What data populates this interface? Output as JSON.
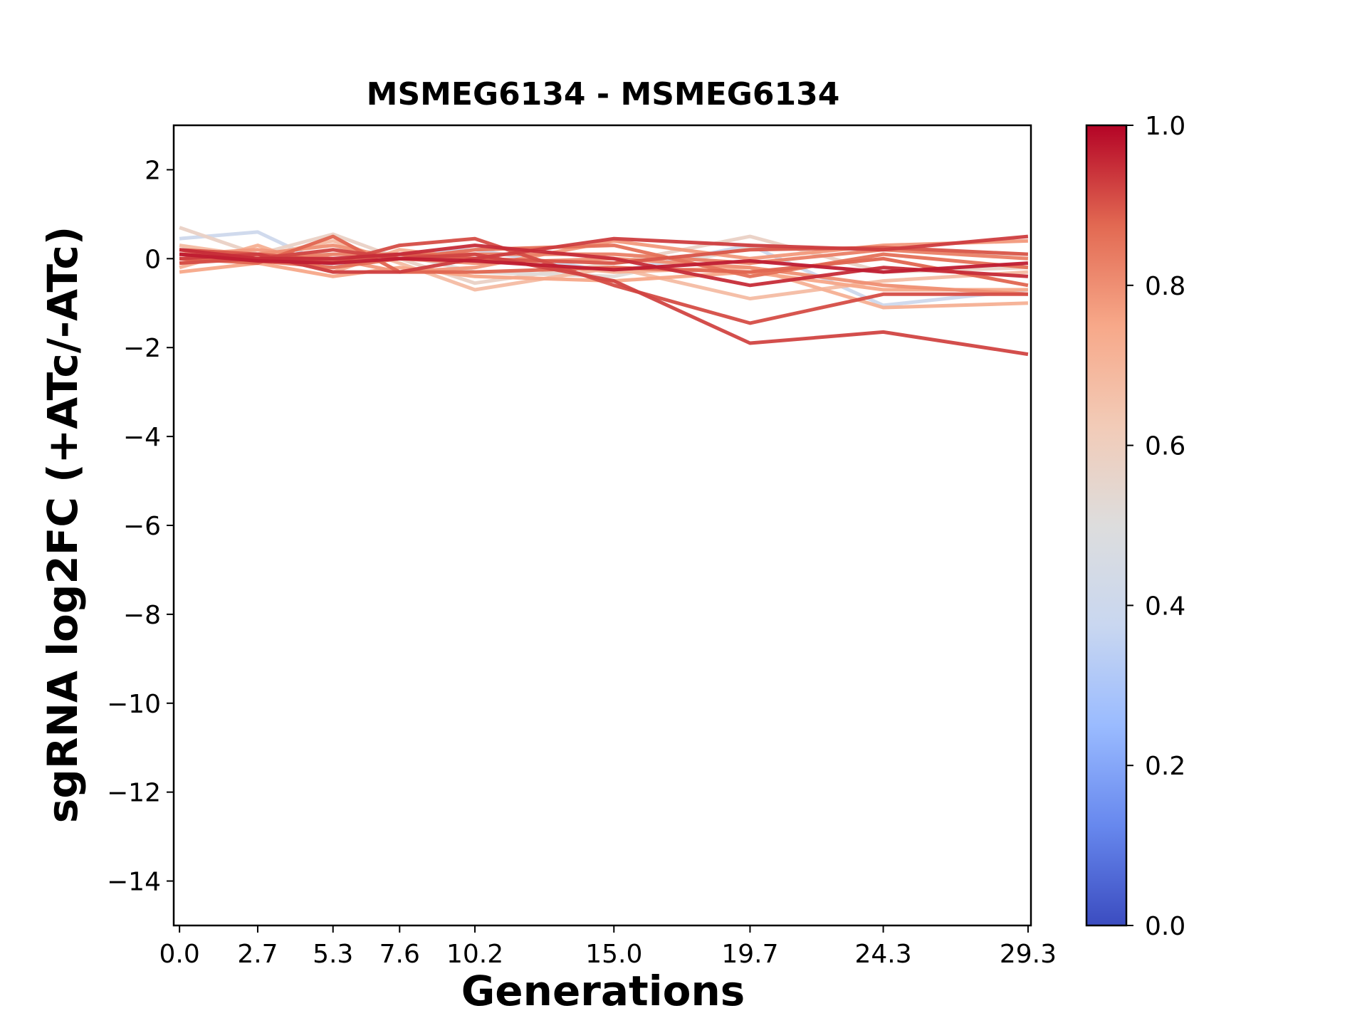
{
  "chart_data": {
    "type": "line",
    "title": "MSMEG6134 - MSMEG6134",
    "xlabel": "Generations",
    "ylabel": "sgRNA log2FC (+ATc/-ATc)",
    "x": [
      0.0,
      2.7,
      5.3,
      7.6,
      10.2,
      15.0,
      19.7,
      24.3,
      29.3
    ],
    "x_tick_labels": [
      "0.0",
      "2.7",
      "5.3",
      "7.6",
      "10.2",
      "15.0",
      "19.7",
      "24.3",
      "29.3"
    ],
    "xlim": [
      -0.2,
      29.4
    ],
    "ylim": [
      -15,
      3
    ],
    "y_ticks": [
      2,
      0,
      -2,
      -4,
      -6,
      -8,
      -10,
      -12,
      -14
    ],
    "y_tick_labels": [
      "2",
      "0",
      "−2",
      "−4",
      "−6",
      "−8",
      "−10",
      "−12",
      "−14"
    ],
    "grid": false,
    "colorbar": {
      "colormap": "coolwarm",
      "range": [
        0.0,
        1.0
      ],
      "ticks": [
        0.0,
        0.2,
        0.4,
        0.6,
        0.8,
        1.0
      ],
      "tick_labels": [
        "0.0",
        "0.2",
        "0.4",
        "0.6",
        "0.8",
        "1.0"
      ],
      "colors": [
        "#3b4cc0",
        "#6788ee",
        "#9abbff",
        "#c9d7f0",
        "#dddddd",
        "#f2cbb7",
        "#f7a889",
        "#e26952",
        "#b40426"
      ]
    },
    "series": [
      {
        "strength": 0.4,
        "values": [
          0.45,
          0.6,
          -0.2,
          0.1,
          0.2,
          -0.3,
          0.3,
          -1.05,
          -0.7
        ]
      },
      {
        "strength": 0.58,
        "values": [
          0.7,
          0.1,
          0.55,
          0.0,
          -0.55,
          -0.1,
          0.5,
          -0.3,
          -0.2
        ]
      },
      {
        "strength": 0.52,
        "values": [
          0.3,
          -0.1,
          0.2,
          0.1,
          -0.3,
          -0.4,
          0.25,
          0.2,
          0.1
        ]
      },
      {
        "strength": 0.68,
        "values": [
          0.3,
          0.05,
          0.4,
          -0.1,
          -0.7,
          -0.2,
          -0.9,
          -0.5,
          -0.3
        ]
      },
      {
        "strength": 0.72,
        "values": [
          -0.2,
          0.3,
          -0.3,
          0.2,
          0.0,
          -0.3,
          -0.2,
          -1.1,
          -1.0
        ]
      },
      {
        "strength": 0.75,
        "values": [
          -0.3,
          -0.1,
          -0.4,
          -0.2,
          -0.4,
          -0.5,
          -0.3,
          -0.7,
          -0.7
        ]
      },
      {
        "strength": 0.78,
        "values": [
          0.1,
          0.2,
          0.0,
          -0.3,
          -0.2,
          0.4,
          0.0,
          0.3,
          0.4
        ]
      },
      {
        "strength": 0.8,
        "values": [
          -0.1,
          0.1,
          0.3,
          0.0,
          -0.1,
          0.0,
          -0.2,
          -0.6,
          -0.8
        ]
      },
      {
        "strength": 0.83,
        "values": [
          0.2,
          0.0,
          0.1,
          0.1,
          0.1,
          0.1,
          -0.1,
          0.2,
          0.0
        ]
      },
      {
        "strength": 0.86,
        "values": [
          0.0,
          -0.05,
          -0.2,
          0.0,
          0.2,
          0.3,
          -0.4,
          0.1,
          -0.2
        ]
      },
      {
        "strength": 0.88,
        "values": [
          0.0,
          -0.1,
          0.5,
          -0.3,
          -0.3,
          -0.2,
          -0.3,
          0.0,
          -0.6
        ]
      },
      {
        "strength": 0.9,
        "values": [
          0.2,
          0.1,
          -0.05,
          0.1,
          0.0,
          -0.1,
          0.2,
          0.25,
          0.1
        ]
      },
      {
        "strength": 0.91,
        "values": [
          -0.1,
          0.0,
          -0.1,
          0.3,
          0.45,
          -0.6,
          -1.45,
          -0.8,
          -0.8
        ]
      },
      {
        "strength": 0.92,
        "values": [
          0.1,
          0.0,
          0.2,
          0.0,
          0.1,
          -0.5,
          -1.9,
          -1.65,
          -2.15
        ]
      },
      {
        "strength": 0.93,
        "values": [
          0.0,
          0.1,
          -0.3,
          -0.3,
          0.0,
          0.45,
          0.3,
          0.2,
          0.5
        ]
      },
      {
        "strength": 0.95,
        "values": [
          0.2,
          0.0,
          0.0,
          0.1,
          0.3,
          0.0,
          -0.6,
          -0.2,
          -0.4
        ]
      },
      {
        "strength": 0.97,
        "values": [
          0.1,
          -0.05,
          -0.1,
          0.0,
          -0.05,
          -0.25,
          -0.05,
          -0.3,
          -0.1
        ]
      }
    ]
  }
}
